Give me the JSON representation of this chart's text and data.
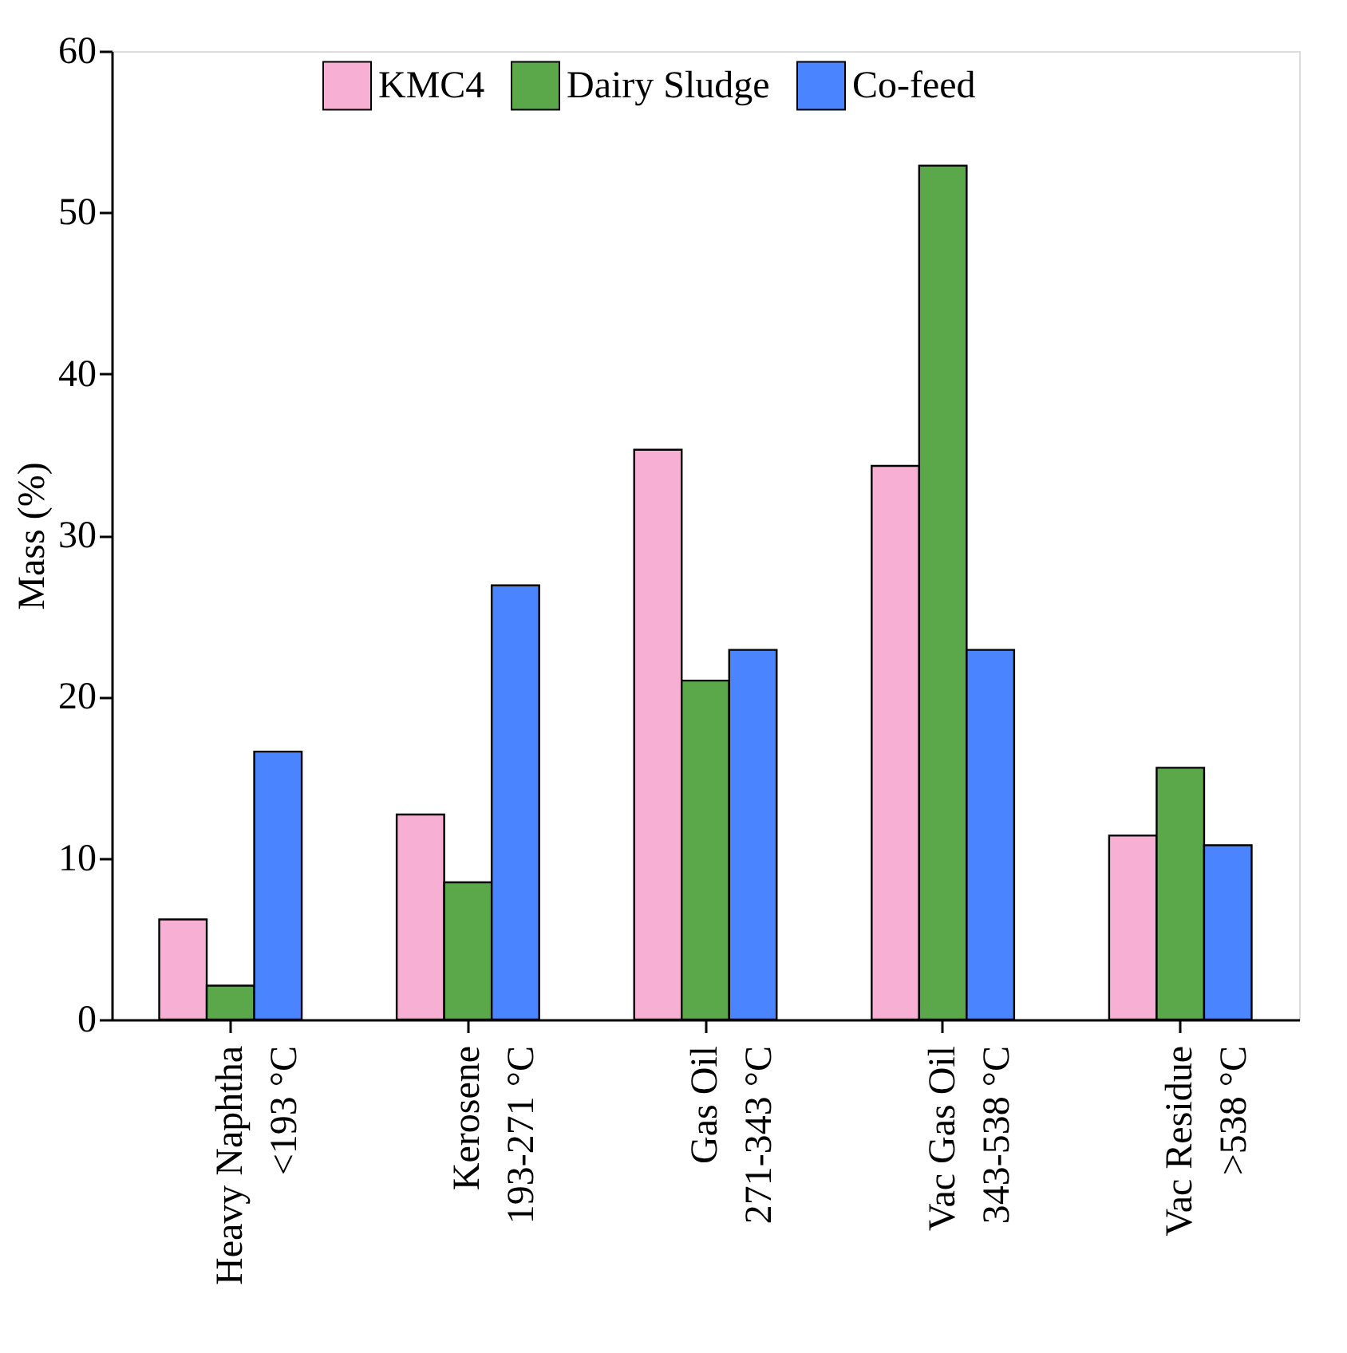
{
  "chart_data": {
    "type": "bar",
    "ylabel": "Mass (%)",
    "categories": [
      "Heavy Naphtha\n<193 °C",
      "Kerosene\n193-271 °C",
      "Gas Oil\n271-343 °C",
      "Vac Gas Oil\n343-538 °C",
      "Vac Residue\n>538 °C"
    ],
    "series": [
      {
        "name": "KMC4",
        "color": "#f7b0d4",
        "values": [
          6.2,
          12.7,
          35.3,
          34.3,
          11.4
        ]
      },
      {
        "name": "Dairy Sludge",
        "color": "#5aa84a",
        "values": [
          2.1,
          8.5,
          21.0,
          52.9,
          15.6
        ]
      },
      {
        "name": "Co-feed",
        "color": "#4a84ff",
        "values": [
          16.6,
          26.9,
          22.9,
          22.9,
          10.8
        ]
      }
    ],
    "ylim": [
      0,
      60
    ],
    "yticks": [
      0,
      10,
      20,
      30,
      40,
      50,
      60
    ],
    "grid": false,
    "legend": "top"
  }
}
